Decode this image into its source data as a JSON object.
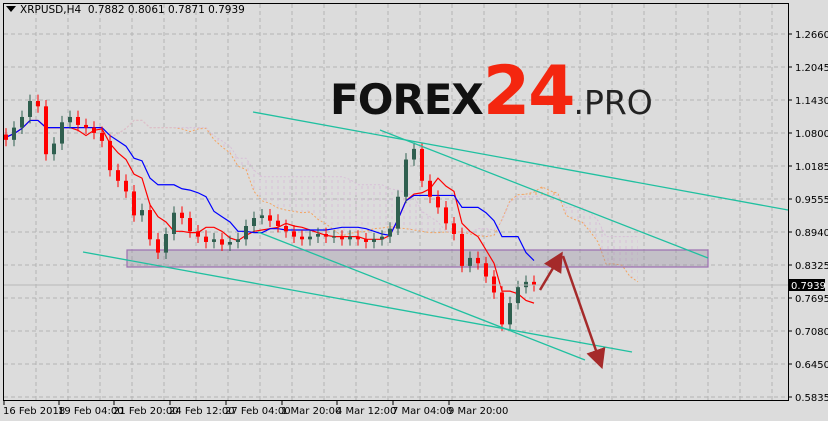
{
  "header": {
    "symbol": "XRPUSD,H4",
    "ohlc": "0.7882 0.8061 0.7871 0.7939"
  },
  "watermark": {
    "part1": "FOREX",
    "part2": "24",
    "part3": ".PRO"
  },
  "colors": {
    "background": "#dcdcdc",
    "bull": "#2f5f4f",
    "bear": "#ff0000",
    "tenkan": "#ff0000",
    "kijun": "#0000ff",
    "cloud_a": "#f4a460",
    "cloud_b": "#d8bfd8",
    "trendline": "#20c0a0",
    "zone": "#9b6fb0",
    "arrow": "#a52a2a"
  },
  "chart_data": {
    "type": "candlestick",
    "title": "XRPUSD,H4",
    "indicators": [
      "Ichimoku Kinko Hyo"
    ],
    "ylim": [
      0.5835,
      1.266
    ],
    "y_ticks": [
      "1.2660",
      "1.2045",
      "1.1430",
      "1.0800",
      "1.0185",
      "0.9555",
      "0.8940",
      "0.8325",
      "0.7695",
      "0.7080",
      "0.6450",
      "0.5835"
    ],
    "x_ticks": [
      "16 Feb 2018",
      "19 Feb 04:00",
      "21 Feb 20:00",
      "24 Feb 12:00",
      "27 Feb 04:00",
      "1 Mar 20:00",
      "4 Mar 12:00",
      "7 Mar 04:00",
      "9 Mar 20:00"
    ],
    "current_price": "0.7939",
    "grid": true,
    "closes": [
      1.067,
      1.09,
      1.11,
      1.14,
      1.13,
      1.04,
      1.06,
      1.1,
      1.11,
      1.095,
      1.09,
      1.08,
      1.065,
      1.01,
      0.99,
      0.97,
      0.925,
      0.935,
      0.88,
      0.855,
      0.89,
      0.93,
      0.92,
      0.895,
      0.885,
      0.875,
      0.88,
      0.87,
      0.875,
      0.88,
      0.905,
      0.92,
      0.925,
      0.915,
      0.905,
      0.895,
      0.885,
      0.88,
      0.885,
      0.89,
      0.885,
      0.885,
      0.88,
      0.885,
      0.88,
      0.875,
      0.88,
      0.885,
      0.9,
      0.96,
      1.03,
      1.05,
      0.99,
      0.96,
      0.94,
      0.91,
      0.89,
      0.83,
      0.845,
      0.835,
      0.81,
      0.78,
      0.72,
      0.76,
      0.79,
      0.8,
      0.7939
    ],
    "support_zone": [
      0.832,
      0.862
    ]
  }
}
